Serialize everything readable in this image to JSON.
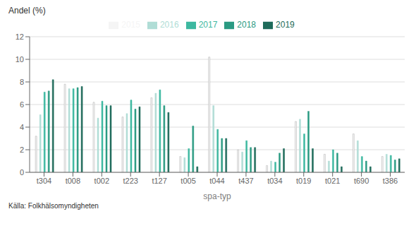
{
  "chart_data": {
    "type": "bar",
    "ylabel": "Andel (%)",
    "xlabel": "spa-typ",
    "source": "Källa: Folkhälsomyndigheten",
    "categories": [
      "t304",
      "t008",
      "t002",
      "t223",
      "t127",
      "t005",
      "t044",
      "t437",
      "t034",
      "t019",
      "t021",
      "t690",
      "t386"
    ],
    "series": [
      {
        "name": "2015",
        "color": "#f5f5f5",
        "values": [
          3.2,
          7.8,
          6.2,
          4.9,
          6.6,
          1.4,
          10.2,
          2.0,
          0.6,
          4.5,
          1.6,
          3.4,
          1.4
        ]
      },
      {
        "name": "2016",
        "color": "#b0ddd6",
        "values": [
          5.1,
          7.4,
          4.8,
          5.2,
          7.0,
          1.3,
          5.9,
          1.8,
          1.0,
          4.7,
          1.0,
          2.8,
          1.6
        ]
      },
      {
        "name": "2017",
        "color": "#3db8a0",
        "values": [
          7.1,
          7.4,
          6.3,
          6.4,
          7.3,
          2.1,
          3.8,
          2.8,
          0.9,
          3.4,
          2.0,
          1.4,
          1.5
        ]
      },
      {
        "name": "2018",
        "color": "#2a9a82",
        "values": [
          7.2,
          7.5,
          5.9,
          5.6,
          5.9,
          4.1,
          3.0,
          2.2,
          1.7,
          5.4,
          1.7,
          1.0,
          1.1
        ]
      },
      {
        "name": "2019",
        "color": "#1e6b5a",
        "values": [
          8.2,
          7.6,
          5.9,
          5.8,
          5.3,
          0.5,
          3.0,
          2.2,
          2.1,
          2.1,
          0.5,
          0.5,
          1.2
        ]
      }
    ],
    "ylim": [
      0,
      12
    ],
    "yticks": [
      0,
      2,
      4,
      6,
      8,
      10,
      12
    ],
    "grid": true,
    "legend": "top"
  }
}
